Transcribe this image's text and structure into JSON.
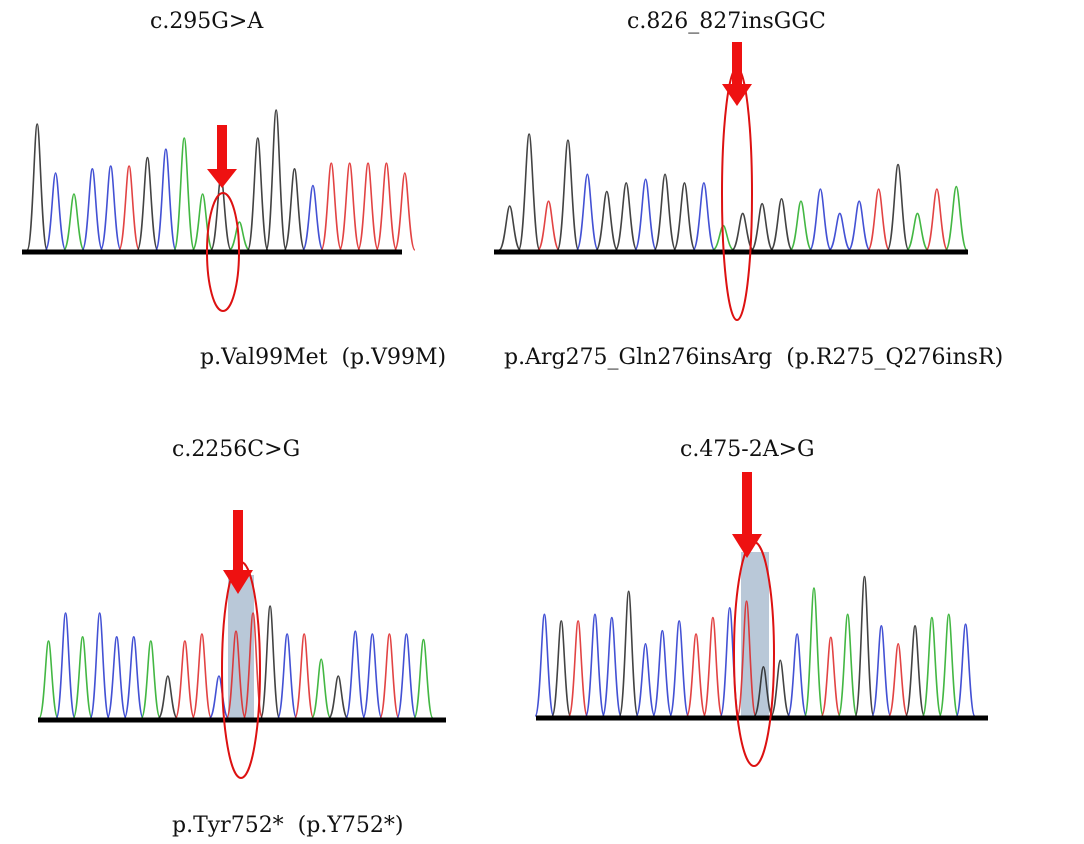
{
  "panels": [
    {
      "id": "a",
      "variant": "c.295G>A",
      "protein": "p.Val99Met  (p.V99M)",
      "peaks": [
        {
          "c": "black",
          "h": 0.9
        },
        {
          "c": "blue",
          "h": 0.55
        },
        {
          "c": "green",
          "h": 0.4
        },
        {
          "c": "blue",
          "h": 0.58
        },
        {
          "c": "blue",
          "h": 0.6
        },
        {
          "c": "red",
          "h": 0.6
        },
        {
          "c": "black",
          "h": 0.66
        },
        {
          "c": "blue",
          "h": 0.72
        },
        {
          "c": "green",
          "h": 0.8
        },
        {
          "c": "green",
          "h": 0.4
        },
        {
          "c": "black",
          "h": 0.52
        },
        {
          "c": "green",
          "h": 0.2
        },
        {
          "c": "black",
          "h": 0.8
        },
        {
          "c": "black",
          "h": 1.0
        },
        {
          "c": "black",
          "h": 0.58
        },
        {
          "c": "blue",
          "h": 0.46
        },
        {
          "c": "red",
          "h": 0.62
        },
        {
          "c": "red",
          "h": 0.62
        },
        {
          "c": "red",
          "h": 0.62
        },
        {
          "c": "red",
          "h": 0.62
        },
        {
          "c": "red",
          "h": 0.55
        }
      ]
    },
    {
      "id": "b",
      "variant": "c.826_827insGGC",
      "protein": "p.Arg275_Gln276insArg  (p.R275_Q276insR)",
      "peaks": [
        {
          "c": "black",
          "h": 0.36
        },
        {
          "c": "black",
          "h": 0.95
        },
        {
          "c": "red",
          "h": 0.4
        },
        {
          "c": "black",
          "h": 0.9
        },
        {
          "c": "blue",
          "h": 0.62
        },
        {
          "c": "black",
          "h": 0.48
        },
        {
          "c": "black",
          "h": 0.55
        },
        {
          "c": "blue",
          "h": 0.58
        },
        {
          "c": "black",
          "h": 0.62
        },
        {
          "c": "black",
          "h": 0.55
        },
        {
          "c": "blue",
          "h": 0.55
        },
        {
          "c": "green",
          "h": 0.2
        },
        {
          "c": "black",
          "h": 0.3
        },
        {
          "c": "black",
          "h": 0.38
        },
        {
          "c": "black",
          "h": 0.42
        },
        {
          "c": "green",
          "h": 0.4
        },
        {
          "c": "blue",
          "h": 0.5
        },
        {
          "c": "blue",
          "h": 0.3
        },
        {
          "c": "blue",
          "h": 0.4
        },
        {
          "c": "red",
          "h": 0.5
        },
        {
          "c": "black",
          "h": 0.7
        },
        {
          "c": "green",
          "h": 0.3
        },
        {
          "c": "red",
          "h": 0.5
        },
        {
          "c": "green",
          "h": 0.52
        }
      ]
    },
    {
      "id": "c",
      "variant": "c.2256C>G",
      "protein": "p.Tyr752*  (p.Y752*)",
      "peaks": [
        {
          "c": "green",
          "h": 0.55
        },
        {
          "c": "blue",
          "h": 0.75
        },
        {
          "c": "green",
          "h": 0.58
        },
        {
          "c": "blue",
          "h": 0.75
        },
        {
          "c": "blue",
          "h": 0.58
        },
        {
          "c": "blue",
          "h": 0.58
        },
        {
          "c": "green",
          "h": 0.55
        },
        {
          "c": "black",
          "h": 0.3
        },
        {
          "c": "red",
          "h": 0.55
        },
        {
          "c": "red",
          "h": 0.6
        },
        {
          "c": "blue",
          "h": 0.3
        },
        {
          "c": "red",
          "h": 0.62
        },
        {
          "c": "red",
          "h": 0.75
        },
        {
          "c": "black",
          "h": 0.8
        },
        {
          "c": "blue",
          "h": 0.6
        },
        {
          "c": "red",
          "h": 0.6
        },
        {
          "c": "green",
          "h": 0.42
        },
        {
          "c": "black",
          "h": 0.3
        },
        {
          "c": "blue",
          "h": 0.62
        },
        {
          "c": "blue",
          "h": 0.6
        },
        {
          "c": "red",
          "h": 0.6
        },
        {
          "c": "blue",
          "h": 0.6
        },
        {
          "c": "green",
          "h": 0.56
        }
      ]
    },
    {
      "id": "d",
      "variant": "c.475-2A>G",
      "protein": "",
      "peaks": [
        {
          "c": "blue",
          "h": 0.62
        },
        {
          "c": "black",
          "h": 0.58
        },
        {
          "c": "red",
          "h": 0.58
        },
        {
          "c": "blue",
          "h": 0.62
        },
        {
          "c": "blue",
          "h": 0.6
        },
        {
          "c": "black",
          "h": 0.76
        },
        {
          "c": "blue",
          "h": 0.44
        },
        {
          "c": "blue",
          "h": 0.52
        },
        {
          "c": "blue",
          "h": 0.58
        },
        {
          "c": "red",
          "h": 0.5
        },
        {
          "c": "red",
          "h": 0.6
        },
        {
          "c": "blue",
          "h": 0.66
        },
        {
          "c": "red",
          "h": 0.7
        },
        {
          "c": "black",
          "h": 0.3
        },
        {
          "c": "black",
          "h": 0.34
        },
        {
          "c": "blue",
          "h": 0.5
        },
        {
          "c": "green",
          "h": 0.78
        },
        {
          "c": "red",
          "h": 0.48
        },
        {
          "c": "green",
          "h": 0.62
        },
        {
          "c": "black",
          "h": 0.85
        },
        {
          "c": "blue",
          "h": 0.55
        },
        {
          "c": "red",
          "h": 0.44
        },
        {
          "c": "black",
          "h": 0.55
        },
        {
          "c": "green",
          "h": 0.6
        },
        {
          "c": "green",
          "h": 0.62
        },
        {
          "c": "blue",
          "h": 0.56
        }
      ]
    }
  ],
  "colors": {
    "A": "#22aa22",
    "C": "#2233cc",
    "G": "#222222",
    "T": "#dd2222",
    "arrow": "#ee1111",
    "highlight": "#b9c8d8",
    "baseline": "#000000"
  }
}
